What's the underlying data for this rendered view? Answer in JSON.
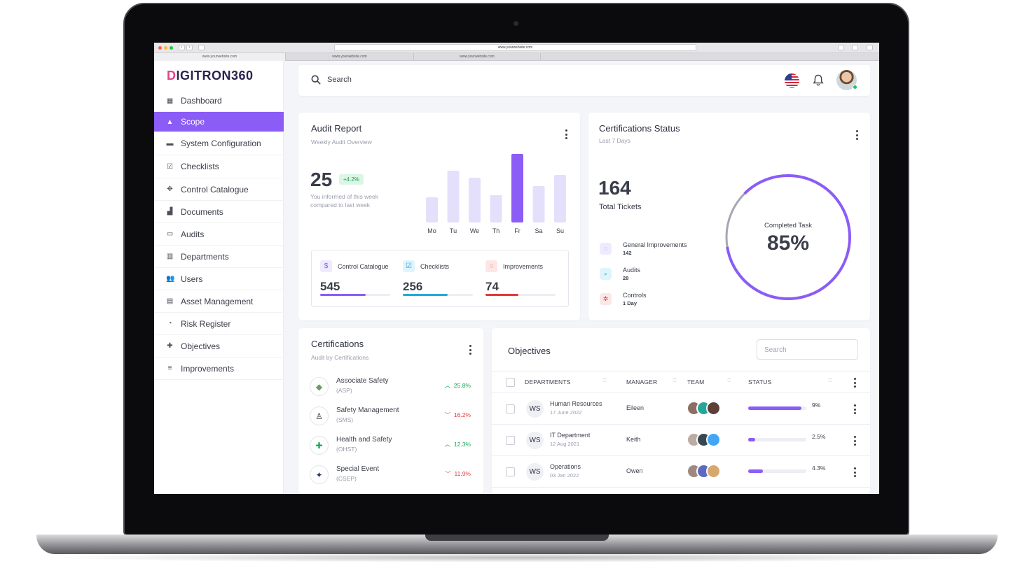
{
  "browser": {
    "url": "www.yourwebsite.com",
    "tabs": [
      "www.yourwebsite.com",
      "www.yourwebsite.com",
      "www.yourwebsite.com"
    ]
  },
  "brand": {
    "logo": "DIGITRON360",
    "accent": "#8b5cf6"
  },
  "sidebar": {
    "items": [
      {
        "label": "Dashboard",
        "icon": "dashboard-icon"
      },
      {
        "label": "Scope",
        "icon": "mountain-icon"
      },
      {
        "label": "System Configuration",
        "icon": "ticket-icon"
      },
      {
        "label": "Checklists",
        "icon": "checklist-icon"
      },
      {
        "label": "Control Catalogue",
        "icon": "move-icon"
      },
      {
        "label": "Documents",
        "icon": "documents-icon"
      },
      {
        "label": "Audits",
        "icon": "audit-icon"
      },
      {
        "label": "Departments",
        "icon": "bar-chart-icon"
      },
      {
        "label": "Users",
        "icon": "users-icon"
      },
      {
        "label": "Asset Management",
        "icon": "clipboard-icon"
      },
      {
        "label": "Risk Register",
        "icon": "gauge-icon"
      },
      {
        "label": "Objectives",
        "icon": "puzzle-icon"
      },
      {
        "label": "Improvements",
        "icon": "list-icon"
      }
    ],
    "active_index": 1
  },
  "topbar": {
    "search_placeholder": "Search"
  },
  "audit_report": {
    "title": "Audit Report",
    "subtitle": "Weekly Audit Overview",
    "value": "25",
    "change": "+4.2%",
    "note_line1": "You informed of this week",
    "note_line2": "compared to last week",
    "chart_data": {
      "type": "bar",
      "categories": [
        "Mo",
        "Tu",
        "We",
        "Th",
        "Fr",
        "Sa",
        "Su"
      ],
      "values": [
        36,
        74,
        64,
        39,
        98,
        52,
        68
      ],
      "highlight": "Fr"
    },
    "stats": [
      {
        "label": "Control Catalogue",
        "value": "545",
        "progress": 0.65,
        "color": "#8b5cf6",
        "icon": "dollar-icon"
      },
      {
        "label": "Checklists",
        "value": "256",
        "progress": 0.64,
        "color": "#22a9d9",
        "icon": "checklist-icon"
      },
      {
        "label": "Improvements",
        "value": "74",
        "progress": 0.47,
        "color": "#e5383b",
        "icon": "lifebuoy-icon"
      }
    ]
  },
  "cert_status": {
    "title": "Certifications Status",
    "subtitle": "Last 7 Days",
    "total": "164",
    "total_label": "Total Tickets",
    "items": [
      {
        "label": "General Improvements",
        "value": "142",
        "icon": "circle-dash-icon",
        "color": "#8b5cf6"
      },
      {
        "label": "Audits",
        "value": "28",
        "icon": "search-icon",
        "color": "#22a9d9"
      },
      {
        "label": "Controls",
        "value": "1 Day",
        "icon": "gear-icon",
        "color": "#e5383b"
      }
    ],
    "donut": {
      "label": "Completed Task",
      "value": "85%",
      "percent": 0.85
    }
  },
  "certifications": {
    "title": "Certifications",
    "subtitle": "Audit by Certifications",
    "rows": [
      {
        "name": "Associate Safety",
        "code": "(ASP)",
        "pct": "25.8%",
        "trend": "up"
      },
      {
        "name": "Safety Management",
        "code": "(SMS)",
        "pct": "16.2%",
        "trend": "down"
      },
      {
        "name": "Health and Safety",
        "code": "(OHST)",
        "pct": "12.3%",
        "trend": "up"
      },
      {
        "name": "Special Event",
        "code": "(CSEP)",
        "pct": "11.9%",
        "trend": "down"
      }
    ]
  },
  "objectives": {
    "title": "Objectives",
    "search_placeholder": "Search",
    "columns": [
      "DEPARTMENTS",
      "MANAGER",
      "TEAM",
      "STATUS"
    ],
    "rows": [
      {
        "initials": "WS",
        "dept": "Human Resources",
        "date": "17 June 2022",
        "manager": "Eileen",
        "pct": "9%",
        "progress": 0.92
      },
      {
        "initials": "WS",
        "dept": "IT Department",
        "date": "12 Aug 2021",
        "manager": "Keith",
        "pct": "2.5%",
        "progress": 0.12
      },
      {
        "initials": "WS",
        "dept": "Operations",
        "date": "03 Jan 2022",
        "manager": "Owen",
        "pct": "4.3%",
        "progress": 0.25
      }
    ]
  }
}
